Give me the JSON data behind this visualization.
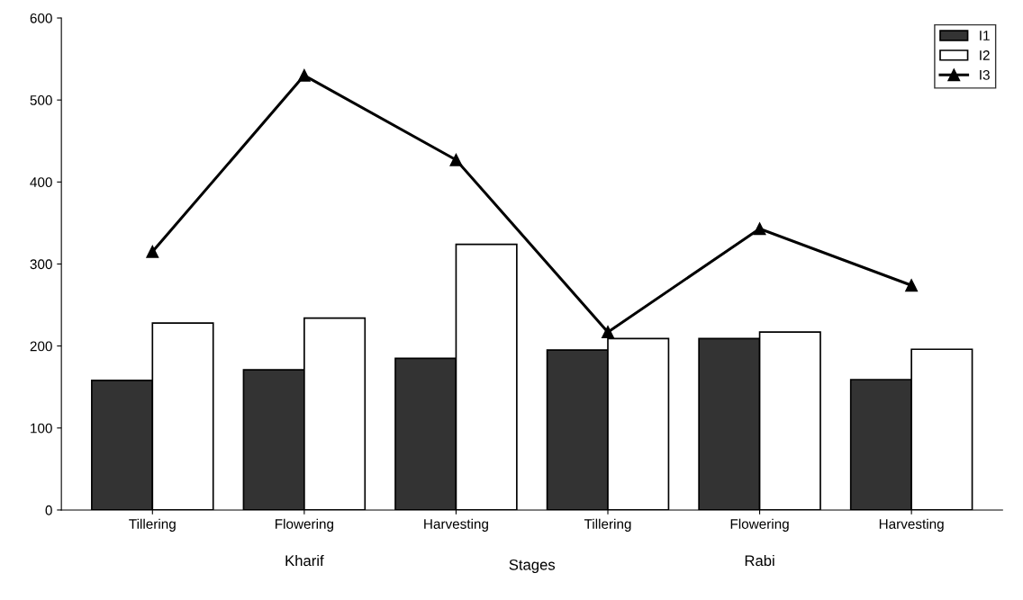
{
  "chart_data": {
    "type": "bar",
    "xlabel": "Stages",
    "categories": [
      "Tillering",
      "Flowering",
      "Harvesting",
      "Tillering",
      "Flowering",
      "Harvesting"
    ],
    "series": [
      {
        "name": "I1",
        "color": "#333333",
        "values": [
          158,
          171,
          185,
          195,
          209,
          159
        ]
      },
      {
        "name": "I2",
        "color": "#ffffff",
        "values": [
          228,
          234,
          324,
          209,
          217,
          196
        ]
      },
      {
        "name": "I3",
        "type": "line",
        "color": "#000000",
        "values": [
          315,
          530,
          427,
          217,
          343,
          274
        ]
      }
    ],
    "annotations": [
      "Kharif",
      "Rabi"
    ],
    "ylim": [
      0,
      600
    ],
    "yticks": [
      0,
      100,
      200,
      300,
      400,
      500,
      600
    ],
    "grid": false,
    "legend": "top right",
    "marker": "triangle",
    "line_style": "solid"
  }
}
